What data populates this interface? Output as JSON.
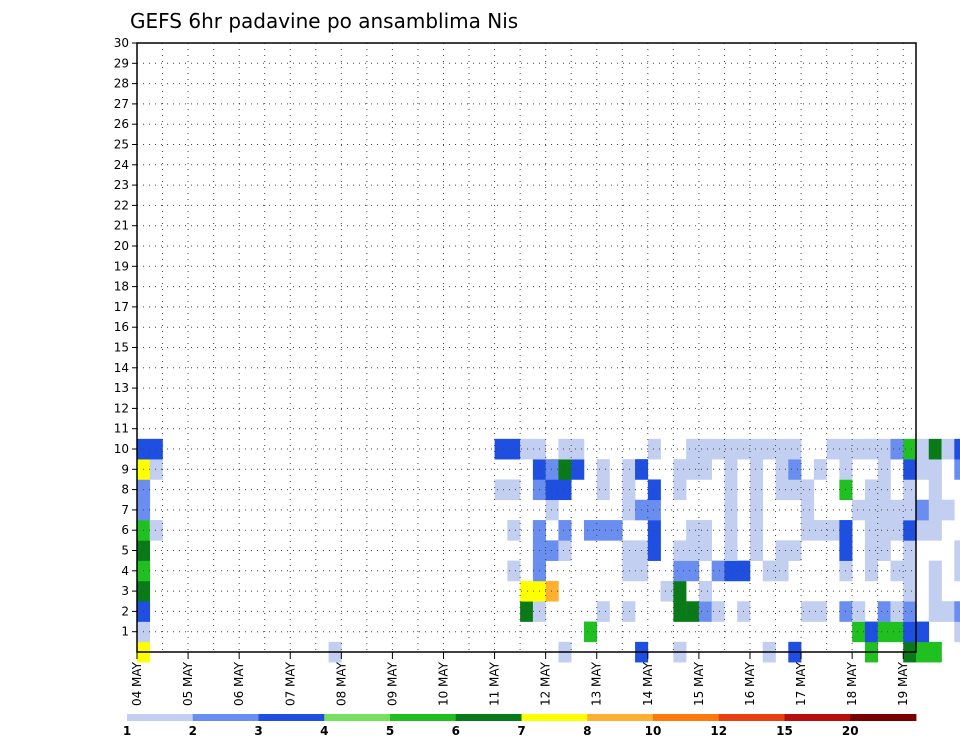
{
  "chart_data": {
    "type": "heatmap",
    "title": "GEFS 6hr padavine po ansamblima Nis",
    "xlabel": "",
    "ylabel": "",
    "x_ticks": [
      "04 MAY",
      "05 MAY",
      "06 MAY",
      "07 MAY",
      "08 MAY",
      "09 MAY",
      "10 MAY",
      "11 MAY",
      "12 MAY",
      "13 MAY",
      "14 MAY",
      "15 MAY",
      "16 MAY",
      "17 MAY",
      "18 MAY",
      "19 MAY"
    ],
    "x_range": [
      "04 MAY 00Z",
      "19 MAY 06Z"
    ],
    "x_step_hours": 6,
    "y_ticks": [
      1,
      2,
      3,
      4,
      5,
      6,
      7,
      8,
      9,
      10,
      11,
      12,
      13,
      14,
      15,
      16,
      17,
      18,
      19,
      20,
      21,
      22,
      23,
      24,
      25,
      26,
      27,
      28,
      29,
      30
    ],
    "y_range": [
      0,
      30
    ],
    "grid": true,
    "colorbar": {
      "placement": "bottom",
      "boundaries": [
        "1",
        "2",
        "3",
        "4",
        "5",
        "6",
        "7",
        "8",
        "10",
        "12",
        "15",
        "20"
      ],
      "colors": [
        "#c2cff0",
        "#6a8ef0",
        "#1f4fe0",
        "#78e060",
        "#20c020",
        "#087a18",
        "#ffff00",
        "#ffb030",
        "#ff7810",
        "#e84010",
        "#b80e0e",
        "#780000"
      ]
    },
    "cells_note": "rows: [member, [[step, level],...]] where step is 6-hourly index from 04 MAY 00Z and level indexes colorbar intervals (0 = 1-2 mm ... 11 = >20 mm)",
    "cells": [
      [
        0,
        [
          [
            0,
            6
          ],
          [
            15,
            0
          ],
          [
            33,
            0
          ],
          [
            39,
            2
          ],
          [
            42,
            0
          ],
          [
            49,
            0
          ],
          [
            51,
            2
          ],
          [
            57,
            4
          ],
          [
            60,
            5
          ],
          [
            61,
            4
          ],
          [
            62,
            4
          ],
          [
            65,
            0
          ],
          [
            66,
            0
          ],
          [
            67,
            4
          ],
          [
            70,
            2
          ]
        ]
      ],
      [
        1,
        [
          [
            0,
            0
          ],
          [
            35,
            4
          ],
          [
            56,
            4
          ],
          [
            57,
            2
          ],
          [
            58,
            4
          ],
          [
            59,
            4
          ],
          [
            60,
            2
          ],
          [
            61,
            2
          ],
          [
            64,
            0
          ],
          [
            66,
            0
          ],
          [
            70,
            0
          ],
          [
            71,
            0
          ]
        ]
      ],
      [
        2,
        [
          [
            0,
            2
          ],
          [
            30,
            5
          ],
          [
            31,
            0
          ],
          [
            36,
            0
          ],
          [
            38,
            0
          ],
          [
            42,
            5
          ],
          [
            43,
            5
          ],
          [
            44,
            1
          ],
          [
            45,
            0
          ],
          [
            47,
            0
          ],
          [
            52,
            0
          ],
          [
            53,
            0
          ],
          [
            55,
            1
          ],
          [
            56,
            0
          ],
          [
            58,
            1
          ],
          [
            59,
            0
          ],
          [
            60,
            1
          ],
          [
            62,
            0
          ],
          [
            63,
            0
          ],
          [
            64,
            1
          ],
          [
            65,
            0
          ],
          [
            66,
            0
          ],
          [
            71,
            0
          ],
          [
            72,
            0
          ],
          [
            76,
            0
          ],
          [
            80,
            0
          ],
          [
            82,
            0
          ]
        ]
      ],
      [
        3,
        [
          [
            0,
            5
          ],
          [
            30,
            6
          ],
          [
            31,
            6
          ],
          [
            32,
            7
          ],
          [
            41,
            0
          ],
          [
            42,
            5
          ],
          [
            44,
            0
          ],
          [
            60,
            0
          ],
          [
            62,
            0
          ]
        ]
      ],
      [
        4,
        [
          [
            0,
            4
          ],
          [
            29,
            0
          ],
          [
            31,
            1
          ],
          [
            38,
            0
          ],
          [
            39,
            0
          ],
          [
            42,
            1
          ],
          [
            43,
            1
          ],
          [
            45,
            1
          ],
          [
            46,
            2
          ],
          [
            47,
            2
          ],
          [
            49,
            0
          ],
          [
            50,
            0
          ],
          [
            55,
            0
          ],
          [
            57,
            0
          ],
          [
            59,
            0
          ],
          [
            60,
            0
          ],
          [
            62,
            0
          ],
          [
            64,
            0
          ],
          [
            65,
            0
          ],
          [
            71,
            0
          ],
          [
            72,
            0
          ],
          [
            73,
            0
          ]
        ]
      ],
      [
        5,
        [
          [
            0,
            5
          ],
          [
            31,
            1
          ],
          [
            32,
            1
          ],
          [
            33,
            0
          ],
          [
            38,
            0
          ],
          [
            39,
            0
          ],
          [
            40,
            2
          ],
          [
            42,
            0
          ],
          [
            43,
            0
          ],
          [
            44,
            0
          ],
          [
            46,
            0
          ],
          [
            48,
            0
          ],
          [
            50,
            0
          ],
          [
            51,
            0
          ],
          [
            55,
            2
          ],
          [
            57,
            0
          ],
          [
            58,
            0
          ],
          [
            60,
            0
          ],
          [
            64,
            0
          ],
          [
            65,
            0
          ],
          [
            66,
            1
          ],
          [
            71,
            0
          ],
          [
            72,
            0
          ],
          [
            76,
            0
          ],
          [
            77,
            0
          ]
        ]
      ],
      [
        6,
        [
          [
            0,
            4
          ],
          [
            1,
            0
          ],
          [
            29,
            0
          ],
          [
            31,
            1
          ],
          [
            33,
            1
          ],
          [
            35,
            1
          ],
          [
            36,
            1
          ],
          [
            37,
            1
          ],
          [
            40,
            2
          ],
          [
            43,
            0
          ],
          [
            44,
            0
          ],
          [
            46,
            0
          ],
          [
            48,
            0
          ],
          [
            52,
            0
          ],
          [
            53,
            0
          ],
          [
            54,
            0
          ],
          [
            55,
            2
          ],
          [
            57,
            0
          ],
          [
            58,
            0
          ],
          [
            59,
            0
          ],
          [
            60,
            2
          ],
          [
            61,
            0
          ],
          [
            62,
            0
          ],
          [
            66,
            2
          ],
          [
            70,
            0
          ],
          [
            74,
            0
          ],
          [
            76,
            0
          ],
          [
            78,
            1
          ],
          [
            79,
            0
          ],
          [
            81,
            0
          ]
        ]
      ],
      [
        7,
        [
          [
            0,
            1
          ],
          [
            32,
            0
          ],
          [
            38,
            0
          ],
          [
            39,
            1
          ],
          [
            40,
            1
          ],
          [
            46,
            0
          ],
          [
            48,
            0
          ],
          [
            52,
            0
          ],
          [
            56,
            0
          ],
          [
            57,
            0
          ],
          [
            58,
            0
          ],
          [
            59,
            0
          ],
          [
            60,
            0
          ],
          [
            61,
            1
          ],
          [
            62,
            0
          ],
          [
            63,
            0
          ],
          [
            65,
            0
          ],
          [
            66,
            1
          ],
          [
            70,
            0
          ],
          [
            71,
            0
          ],
          [
            72,
            0
          ],
          [
            73,
            0
          ]
        ]
      ],
      [
        8,
        [
          [
            0,
            1
          ],
          [
            28,
            0
          ],
          [
            29,
            0
          ],
          [
            31,
            1
          ],
          [
            32,
            2
          ],
          [
            33,
            2
          ],
          [
            36,
            0
          ],
          [
            38,
            0
          ],
          [
            40,
            2
          ],
          [
            42,
            0
          ],
          [
            46,
            0
          ],
          [
            48,
            0
          ],
          [
            50,
            0
          ],
          [
            51,
            0
          ],
          [
            52,
            0
          ],
          [
            55,
            4
          ],
          [
            57,
            0
          ],
          [
            58,
            0
          ],
          [
            60,
            0
          ],
          [
            62,
            0
          ],
          [
            65,
            0
          ],
          [
            66,
            4
          ],
          [
            67,
            4
          ],
          [
            68,
            0
          ],
          [
            69,
            0
          ],
          [
            72,
            0
          ],
          [
            73,
            0
          ],
          [
            74,
            0
          ]
        ]
      ],
      [
        9,
        [
          [
            0,
            6
          ],
          [
            1,
            0
          ],
          [
            31,
            2
          ],
          [
            32,
            1
          ],
          [
            33,
            5
          ],
          [
            34,
            2
          ],
          [
            36,
            0
          ],
          [
            38,
            0
          ],
          [
            39,
            2
          ],
          [
            42,
            0
          ],
          [
            43,
            0
          ],
          [
            44,
            0
          ],
          [
            46,
            0
          ],
          [
            48,
            0
          ],
          [
            50,
            0
          ],
          [
            51,
            1
          ],
          [
            53,
            0
          ],
          [
            55,
            0
          ],
          [
            58,
            0
          ],
          [
            60,
            2
          ],
          [
            61,
            0
          ],
          [
            62,
            0
          ],
          [
            64,
            1
          ],
          [
            65,
            0
          ],
          [
            66,
            2
          ],
          [
            67,
            0
          ],
          [
            68,
            1
          ],
          [
            69,
            1
          ],
          [
            70,
            2
          ],
          [
            71,
            2
          ],
          [
            72,
            0
          ],
          [
            73,
            0
          ],
          [
            74,
            0
          ]
        ]
      ],
      [
        10,
        [
          [
            0,
            2
          ],
          [
            1,
            2
          ],
          [
            28,
            2
          ],
          [
            29,
            2
          ],
          [
            30,
            0
          ],
          [
            31,
            0
          ],
          [
            33,
            0
          ],
          [
            34,
            0
          ],
          [
            40,
            0
          ],
          [
            43,
            0
          ],
          [
            44,
            0
          ],
          [
            45,
            0
          ],
          [
            46,
            0
          ],
          [
            47,
            0
          ],
          [
            48,
            0
          ],
          [
            49,
            0
          ],
          [
            50,
            0
          ],
          [
            51,
            0
          ],
          [
            54,
            0
          ],
          [
            55,
            0
          ],
          [
            56,
            0
          ],
          [
            57,
            0
          ],
          [
            58,
            0
          ],
          [
            59,
            1
          ],
          [
            60,
            4
          ],
          [
            61,
            0
          ],
          [
            62,
            5
          ],
          [
            63,
            0
          ],
          [
            64,
            2
          ],
          [
            65,
            0
          ],
          [
            66,
            2
          ],
          [
            67,
            0
          ],
          [
            68,
            0
          ],
          [
            69,
            0
          ],
          [
            70,
            0
          ],
          [
            71,
            0
          ],
          [
            72,
            0
          ],
          [
            73,
            0
          ],
          [
            74,
            0
          ],
          [
            75,
            0
          ],
          [
            76,
            0
          ],
          [
            77,
            0
          ],
          [
            78,
            0
          ],
          [
            79,
            0
          ],
          [
            80,
            0
          ],
          [
            81,
            0
          ],
          [
            82,
            0
          ],
          [
            83,
            0
          ],
          [
            84,
            0
          ],
          [
            85,
            0
          ],
          [
            86,
            0
          ],
          [
            87,
            1
          ],
          [
            88,
            2
          ],
          [
            89,
            1
          ],
          [
            90,
            0
          ]
        ]
      ]
    ]
  }
}
